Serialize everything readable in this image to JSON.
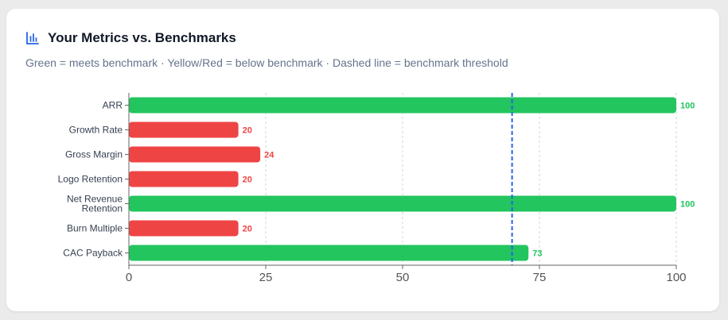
{
  "header": {
    "title": "Your Metrics vs. Benchmarks",
    "subtitle": "Green = meets benchmark · Yellow/Red = below benchmark · Dashed line = benchmark threshold",
    "icon": "bar-chart-icon"
  },
  "colors": {
    "meets": "#22c55e",
    "below": "#ef4444",
    "benchmark_line": "#2563eb",
    "icon": "#2563eb",
    "grid": "#d1d5db"
  },
  "chart_data": {
    "type": "bar",
    "orientation": "horizontal",
    "categories": [
      "ARR",
      "Growth Rate",
      "Gross Margin",
      "Logo Retention",
      "Net Revenue Retention",
      "Burn Multiple",
      "CAC Payback"
    ],
    "category_lines": [
      [
        "ARR"
      ],
      [
        "Growth Rate"
      ],
      [
        "Gross Margin"
      ],
      [
        "Logo Retention"
      ],
      [
        "Net Revenue",
        "Retention"
      ],
      [
        "Burn Multiple"
      ],
      [
        "CAC Payback"
      ]
    ],
    "values": [
      100,
      20,
      24,
      20,
      100,
      20,
      73
    ],
    "status": [
      "meets",
      "below",
      "below",
      "below",
      "meets",
      "below",
      "meets"
    ],
    "value_labels": [
      "100",
      "20",
      "24",
      "20",
      "100",
      "20",
      "73"
    ],
    "benchmark": 70,
    "xlim": [
      0,
      100
    ],
    "xticks": [
      0,
      25,
      50,
      75,
      100
    ],
    "xtick_labels": [
      "0",
      "25",
      "50",
      "75",
      "100"
    ],
    "grid": true
  }
}
